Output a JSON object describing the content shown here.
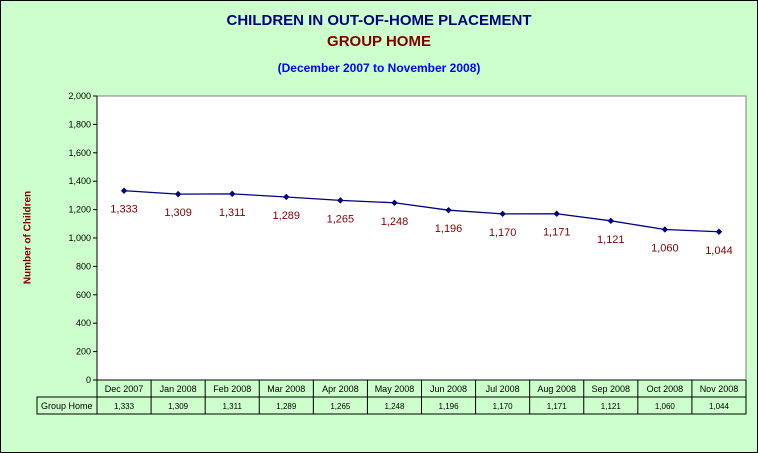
{
  "chart_data": {
    "type": "line",
    "title": "CHILDREN IN OUT-OF-HOME PLACEMENT",
    "subtitle_category": "GROUP HOME",
    "subtitle": "(December 2007 to November 2008)",
    "ylabel": "Number of Children",
    "xlabel": "",
    "ylim": [
      0,
      2000
    ],
    "ytick_step": 200,
    "yticks": [
      "0",
      "200",
      "400",
      "600",
      "800",
      "1,000",
      "1,200",
      "1,400",
      "1,600",
      "1,800",
      "2,000"
    ],
    "categories": [
      "Dec 2007",
      "Jan 2008",
      "Feb 2008",
      "Mar 2008",
      "Apr 2008",
      "May 2008",
      "Jun 2008",
      "Jul 2008",
      "Aug 2008",
      "Sep 2008",
      "Oct 2008",
      "Nov 2008"
    ],
    "series": [
      {
        "name": "Group Home",
        "values": [
          1333,
          1309,
          1311,
          1289,
          1265,
          1248,
          1196,
          1170,
          1171,
          1121,
          1060,
          1044
        ],
        "labels": [
          "1,333",
          "1,309",
          "1,311",
          "1,289",
          "1,265",
          "1,248",
          "1,196",
          "1,170",
          "1,171",
          "1,121",
          "1,060",
          "1,044"
        ],
        "color": "#000080"
      }
    ],
    "data_label_color": "#800000",
    "plot_background": "#ffffff",
    "chart_background": "#ccffcc",
    "grid": false,
    "legend": "data-table-below",
    "data_table": true
  }
}
